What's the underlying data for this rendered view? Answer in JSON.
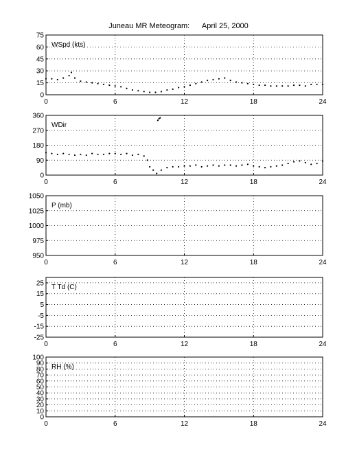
{
  "title": "Juneau MR Meteogram:      April 25, 2000",
  "chart_data": [
    {
      "type": "scatter",
      "panel_label": "WSpd (kts)",
      "x_ticks": [
        0,
        6,
        12,
        18,
        24
      ],
      "y_ticks": [
        0,
        15,
        30,
        45,
        60,
        75
      ],
      "xlim": [
        0,
        24
      ],
      "ylim": [
        0,
        75
      ],
      "grid": true,
      "series": [
        {
          "x": [
            0,
            0.5,
            1,
            1.5,
            2,
            2.2,
            2.5,
            3,
            3.5,
            4,
            4.5,
            5,
            5.5,
            6,
            6.5,
            7,
            7.5,
            8,
            8.5,
            9,
            9.5,
            10,
            10.5,
            11,
            11.5,
            12,
            12.5,
            13,
            13.5,
            14,
            14.5,
            15,
            15.5,
            16,
            16.5,
            17,
            17.5,
            18,
            18.5,
            19,
            19.5,
            20,
            20.5,
            21,
            21.5,
            22,
            22.5,
            23,
            23.5,
            24
          ],
          "y": [
            20,
            20,
            19,
            21,
            24,
            28,
            21,
            17,
            16,
            15,
            14,
            13,
            12,
            11,
            10,
            8,
            6,
            5,
            4,
            3,
            3,
            4,
            6,
            7,
            9,
            10,
            12,
            14,
            16,
            18,
            19,
            20,
            21,
            18,
            16,
            15,
            14,
            13,
            12,
            12,
            11,
            11,
            11,
            11,
            12,
            12,
            11,
            13,
            13,
            13
          ]
        }
      ]
    },
    {
      "type": "scatter",
      "panel_label": "WDir",
      "x_ticks": [
        0,
        6,
        12,
        18,
        24
      ],
      "y_ticks": [
        0,
        90,
        180,
        270,
        360
      ],
      "xlim": [
        0,
        24
      ],
      "ylim": [
        0,
        360
      ],
      "grid": true,
      "series": [
        {
          "x": [
            0,
            0.5,
            1,
            1.5,
            2,
            2.5,
            3,
            3.5,
            4,
            4.5,
            5,
            5.5,
            6,
            6.5,
            7,
            7.5,
            8,
            8.5,
            8.8,
            9,
            9.3,
            9.6,
            9.7,
            9.8,
            9.9,
            10,
            10.5,
            11,
            11.5,
            12,
            12.5,
            13,
            13.5,
            14,
            14.5,
            15,
            15.5,
            16,
            16.5,
            17,
            17.5,
            18,
            18.5,
            19,
            19.5,
            20,
            20.5,
            21,
            21.5,
            22,
            22.5,
            23,
            23.5,
            24
          ],
          "y": [
            135,
            130,
            125,
            130,
            125,
            120,
            125,
            120,
            130,
            125,
            125,
            130,
            130,
            125,
            130,
            120,
            125,
            115,
            90,
            50,
            30,
            10,
            330,
            340,
            345,
            30,
            45,
            50,
            50,
            55,
            55,
            60,
            50,
            55,
            60,
            55,
            60,
            60,
            55,
            60,
            65,
            55,
            50,
            45,
            50,
            55,
            60,
            70,
            80,
            85,
            75,
            65,
            70,
            85
          ]
        }
      ]
    },
    {
      "type": "line",
      "panel_label": "P (mb)",
      "x_ticks": [
        0,
        6,
        12,
        18,
        24
      ],
      "y_ticks": [
        950,
        975,
        1000,
        1025,
        1050
      ],
      "xlim": [
        0,
        24
      ],
      "ylim": [
        950,
        1050
      ],
      "grid": true,
      "series": []
    },
    {
      "type": "line",
      "panel_label": "T Td (C)",
      "x_ticks": [
        0,
        6,
        12,
        18,
        24
      ],
      "y_ticks": [
        -25,
        -15,
        -5,
        5,
        15,
        25
      ],
      "xlim": [
        0,
        24
      ],
      "ylim": [
        -25,
        30
      ],
      "grid": true,
      "series": []
    },
    {
      "type": "line",
      "panel_label": "RH (%)",
      "x_ticks": [
        0,
        6,
        12,
        18,
        24
      ],
      "y_ticks": [
        0,
        10,
        20,
        30,
        40,
        50,
        60,
        70,
        80,
        90,
        100
      ],
      "xlim": [
        0,
        24
      ],
      "ylim": [
        0,
        100
      ],
      "grid": true,
      "series": []
    }
  ]
}
